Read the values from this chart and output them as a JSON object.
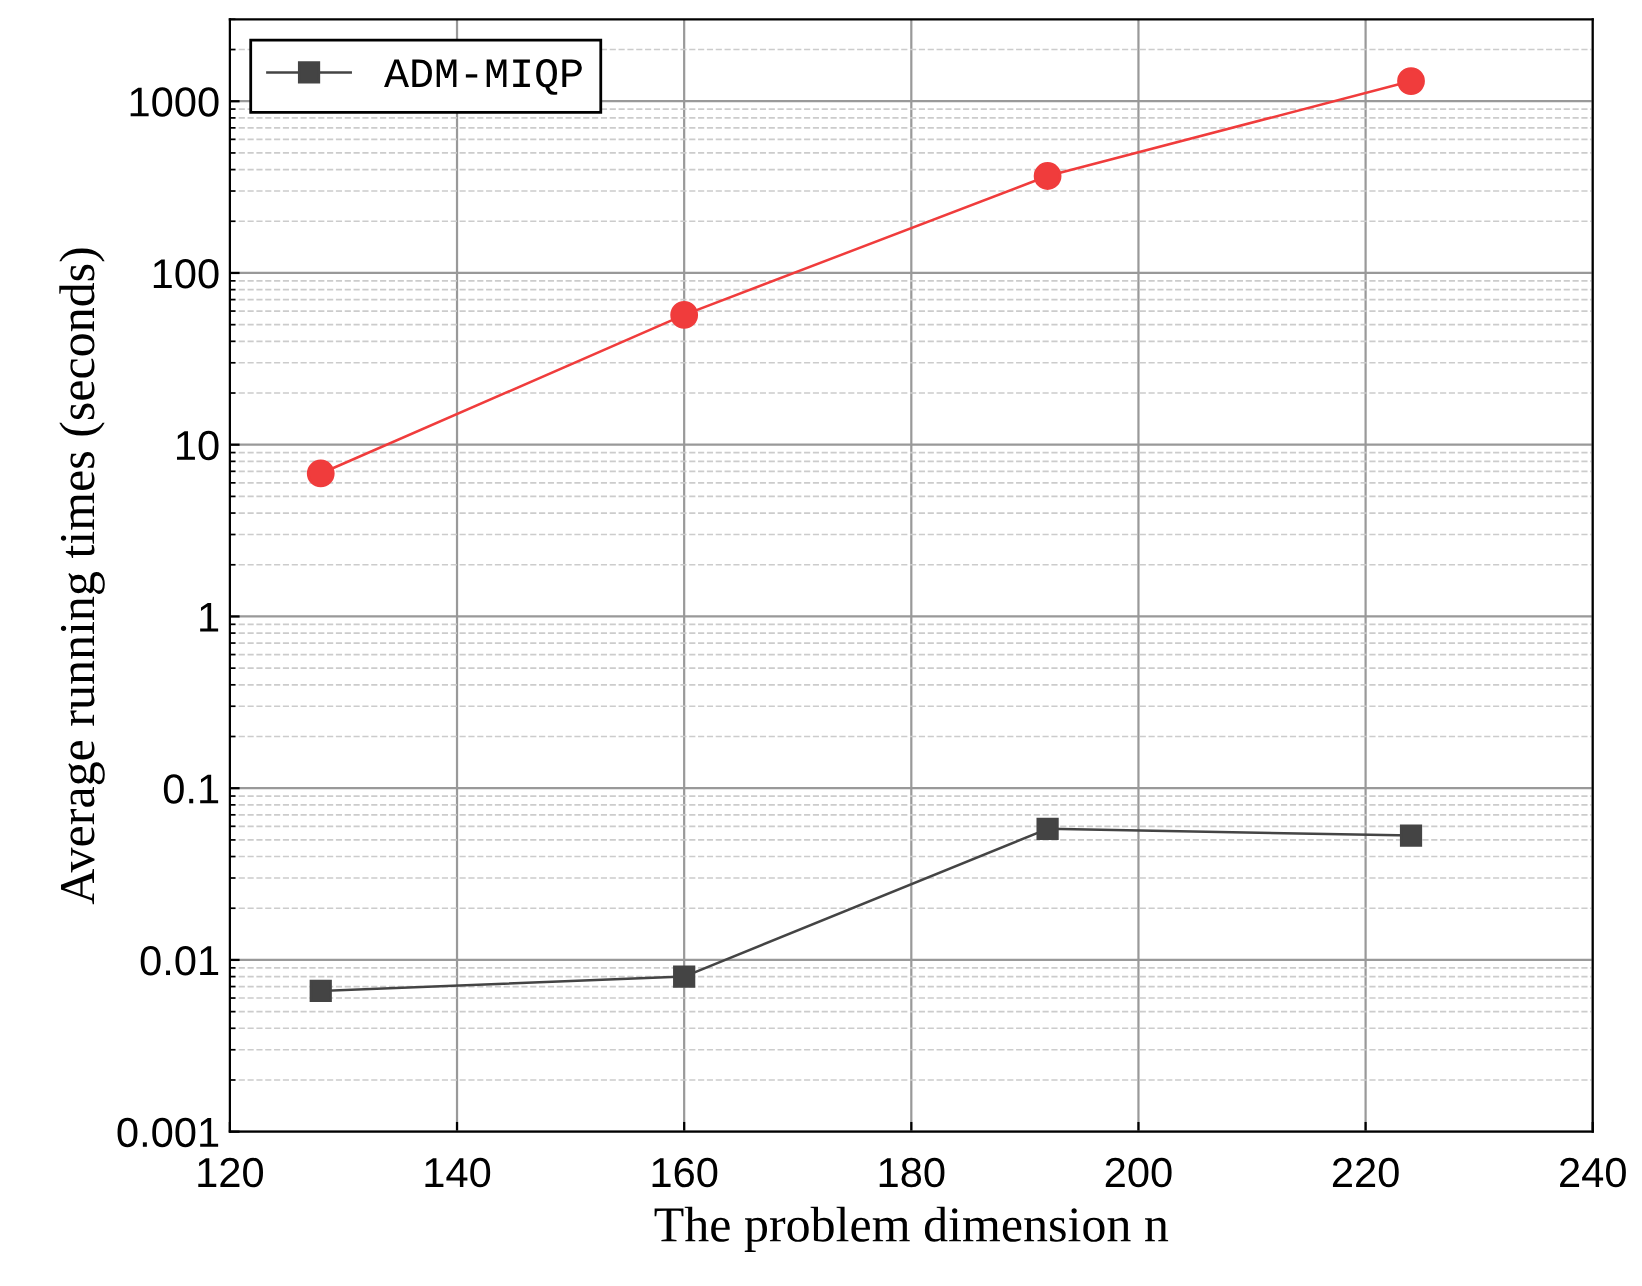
{
  "chart_data": {
    "type": "line",
    "xlabel": "The problem dimension n",
    "ylabel": "Average running times (seconds)",
    "x": [
      128,
      160,
      192,
      224
    ],
    "series": [
      {
        "name": "ADM-MIQP",
        "color": "#444444",
        "marker": "square",
        "values": [
          0.0066,
          0.008,
          0.058,
          0.053
        ]
      },
      {
        "color": "#f03c3c",
        "marker": "circle",
        "values": [
          6.8,
          57,
          367,
          1310
        ]
      }
    ],
    "log": "y",
    "xlim": [
      120,
      240
    ],
    "xticks": [
      120,
      140,
      160,
      180,
      200,
      220,
      240
    ],
    "ylim": [
      0.001,
      3000
    ],
    "yticks": [
      {
        "value": 0.001,
        "label": "0.001"
      },
      {
        "value": 0.01,
        "label": "0.01"
      },
      {
        "value": 0.1,
        "label": "0.1"
      },
      {
        "value": 1,
        "label": "1"
      },
      {
        "value": 10,
        "label": "10"
      },
      {
        "value": 100,
        "label": "100"
      },
      {
        "value": 1000,
        "label": "1000"
      }
    ],
    "grid": true,
    "legend": "top left",
    "line_style": "solid"
  }
}
